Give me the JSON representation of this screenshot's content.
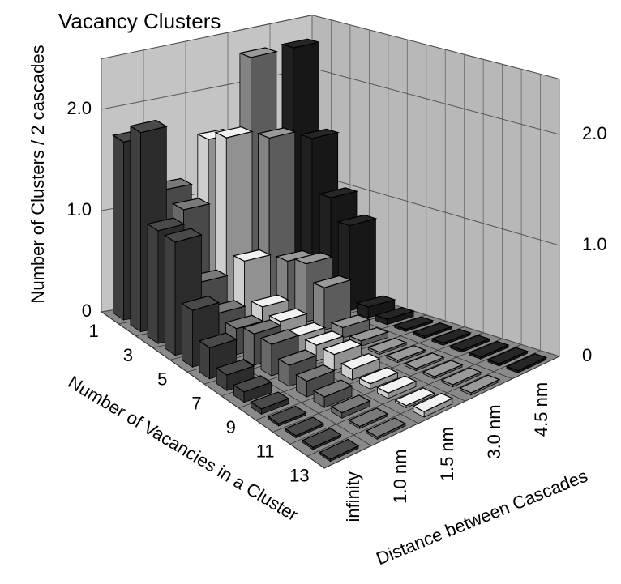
{
  "chart_data": {
    "type": "bar3d",
    "title": "Vacancy Clusters",
    "zlabel": "Number of Clusters / 2 cascades",
    "xlabel": "Number of Vacancies in a Cluster",
    "ylabel": "Distance between Cascades",
    "categories": [
      "1",
      null,
      "3",
      null,
      "5",
      null,
      "7",
      null,
      "9",
      null,
      "11",
      null,
      "13"
    ],
    "series": [
      {
        "name": "infinity",
        "color": "#4a4a4a",
        "values": [
          1.75,
          1.95,
          1.1,
          1.1,
          0.55,
          0.3,
          0.15,
          0.1,
          0.05,
          0.02,
          0.02,
          0.02,
          0.02
        ]
      },
      {
        "name": "1.0 nm",
        "color": "#7a7a7a",
        "values": [
          1.2,
          1.1,
          0.5,
          0.3,
          0.25,
          0.3,
          0.3,
          0.2,
          0.15,
          0.1,
          0.05,
          0.02,
          0.02
        ]
      },
      {
        "name": "1.5 nm",
        "color": "#f2f2f2",
        "values": [
          1.6,
          1.7,
          0.6,
          0.25,
          0.2,
          0.15,
          0.15,
          0.15,
          0.1,
          0.05,
          0.05,
          0.02,
          0.05
        ]
      },
      {
        "name": "3.0 nm",
        "color": "#9a9a9a",
        "values": [
          2.3,
          1.6,
          0.5,
          0.55,
          0.4,
          0.1,
          0.05,
          0.02,
          0.02,
          0.02,
          0.02,
          0.02,
          0.02
        ]
      },
      {
        "name": "4.5 nm",
        "color": "#262626",
        "values": [
          2.3,
          1.5,
          1.0,
          0.8,
          0.1,
          0.05,
          0.02,
          0.02,
          0.02,
          0.02,
          0.02,
          0.02,
          0.02
        ]
      }
    ],
    "zlim": [
      0,
      2.5
    ],
    "zticks": [
      0,
      {
        "value": 1,
        "label": "1.0"
      },
      {
        "value": 2,
        "label": "2.0"
      }
    ],
    "grid": true
  }
}
